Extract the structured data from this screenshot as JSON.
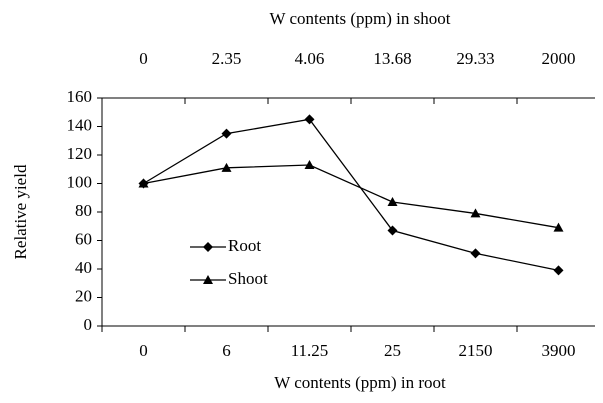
{
  "chart_data": {
    "type": "line",
    "x_label": "W contents (ppm) in root",
    "x2_label": "W contents (ppm) in shoot",
    "y_label": "Relative yield",
    "categories": [
      "0",
      "6",
      "11.25",
      "25",
      "2150",
      "3900"
    ],
    "x2_categories": [
      "0",
      "2.35",
      "4.06",
      "13.68",
      "29.33",
      "2000"
    ],
    "series": [
      {
        "name": "Root",
        "color": "#000000",
        "marker": "diamond",
        "values": [
          100,
          135,
          145,
          67,
          51,
          39
        ]
      },
      {
        "name": "Shoot",
        "color": "#000000",
        "marker": "triangle",
        "values": [
          100,
          111,
          113,
          87,
          79,
          69
        ]
      }
    ],
    "ylim": [
      0,
      160
    ],
    "yticks": [
      0,
      20,
      40,
      60,
      80,
      100,
      120,
      140,
      160
    ],
    "grid": false,
    "legend": "lower-left"
  }
}
